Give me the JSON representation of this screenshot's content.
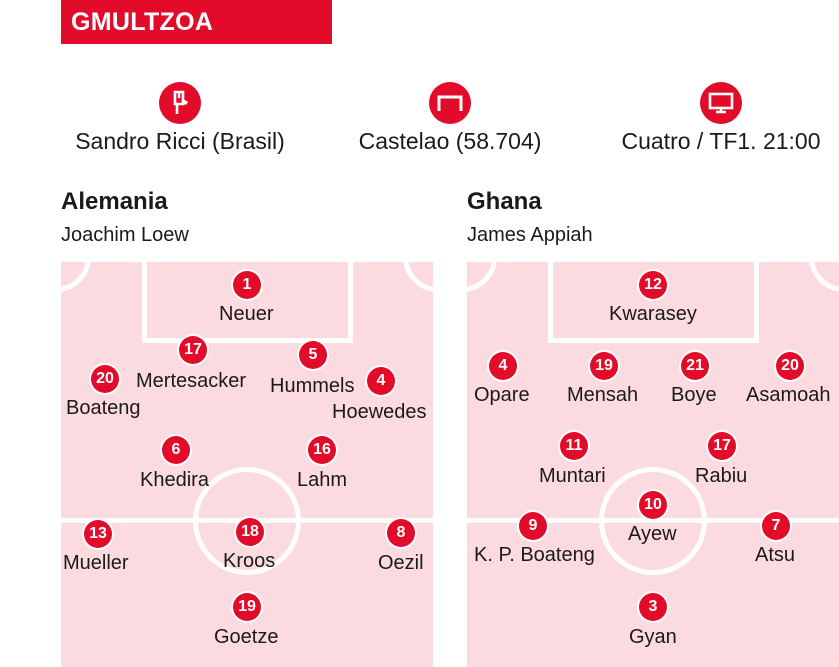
{
  "header": {
    "title": "GMULTZOA"
  },
  "info": {
    "referee": {
      "icon": "whistle-icon",
      "text": "Sandro Ricci (Brasil)"
    },
    "stadium": {
      "icon": "goal-icon",
      "text": "Castelao (58.704)"
    },
    "broadcast": {
      "icon": "tv-icon",
      "text": "Cuatro / TF1. 21:00"
    }
  },
  "teams": [
    {
      "name": "Alemania",
      "coach": "Joachim Loew",
      "players": [
        {
          "number": "1",
          "name": "Neuer"
        },
        {
          "number": "17",
          "name": "Mertesacker"
        },
        {
          "number": "5",
          "name": "Hummels"
        },
        {
          "number": "20",
          "name": "Boateng"
        },
        {
          "number": "4",
          "name": "Hoewedes"
        },
        {
          "number": "6",
          "name": "Khedira"
        },
        {
          "number": "16",
          "name": "Lahm"
        },
        {
          "number": "13",
          "name": "Mueller"
        },
        {
          "number": "18",
          "name": "Kroos"
        },
        {
          "number": "8",
          "name": "Oezil"
        },
        {
          "number": "19",
          "name": "Goetze"
        }
      ]
    },
    {
      "name": "Ghana",
      "coach": "James Appiah",
      "players": [
        {
          "number": "12",
          "name": "Kwarasey"
        },
        {
          "number": "4",
          "name": "Opare"
        },
        {
          "number": "19",
          "name": "Mensah"
        },
        {
          "number": "21",
          "name": "Boye"
        },
        {
          "number": "20",
          "name": "Asamoah"
        },
        {
          "number": "11",
          "name": "Muntari"
        },
        {
          "number": "17",
          "name": "Rabiu"
        },
        {
          "number": "10",
          "name": "Ayew"
        },
        {
          "number": "9",
          "name": "K. P. Boateng"
        },
        {
          "number": "7",
          "name": "Atsu"
        },
        {
          "number": "3",
          "name": "Gyan"
        }
      ]
    }
  ],
  "colors": {
    "accent": "#e30b2a",
    "pitch": "#fcdbe0"
  }
}
